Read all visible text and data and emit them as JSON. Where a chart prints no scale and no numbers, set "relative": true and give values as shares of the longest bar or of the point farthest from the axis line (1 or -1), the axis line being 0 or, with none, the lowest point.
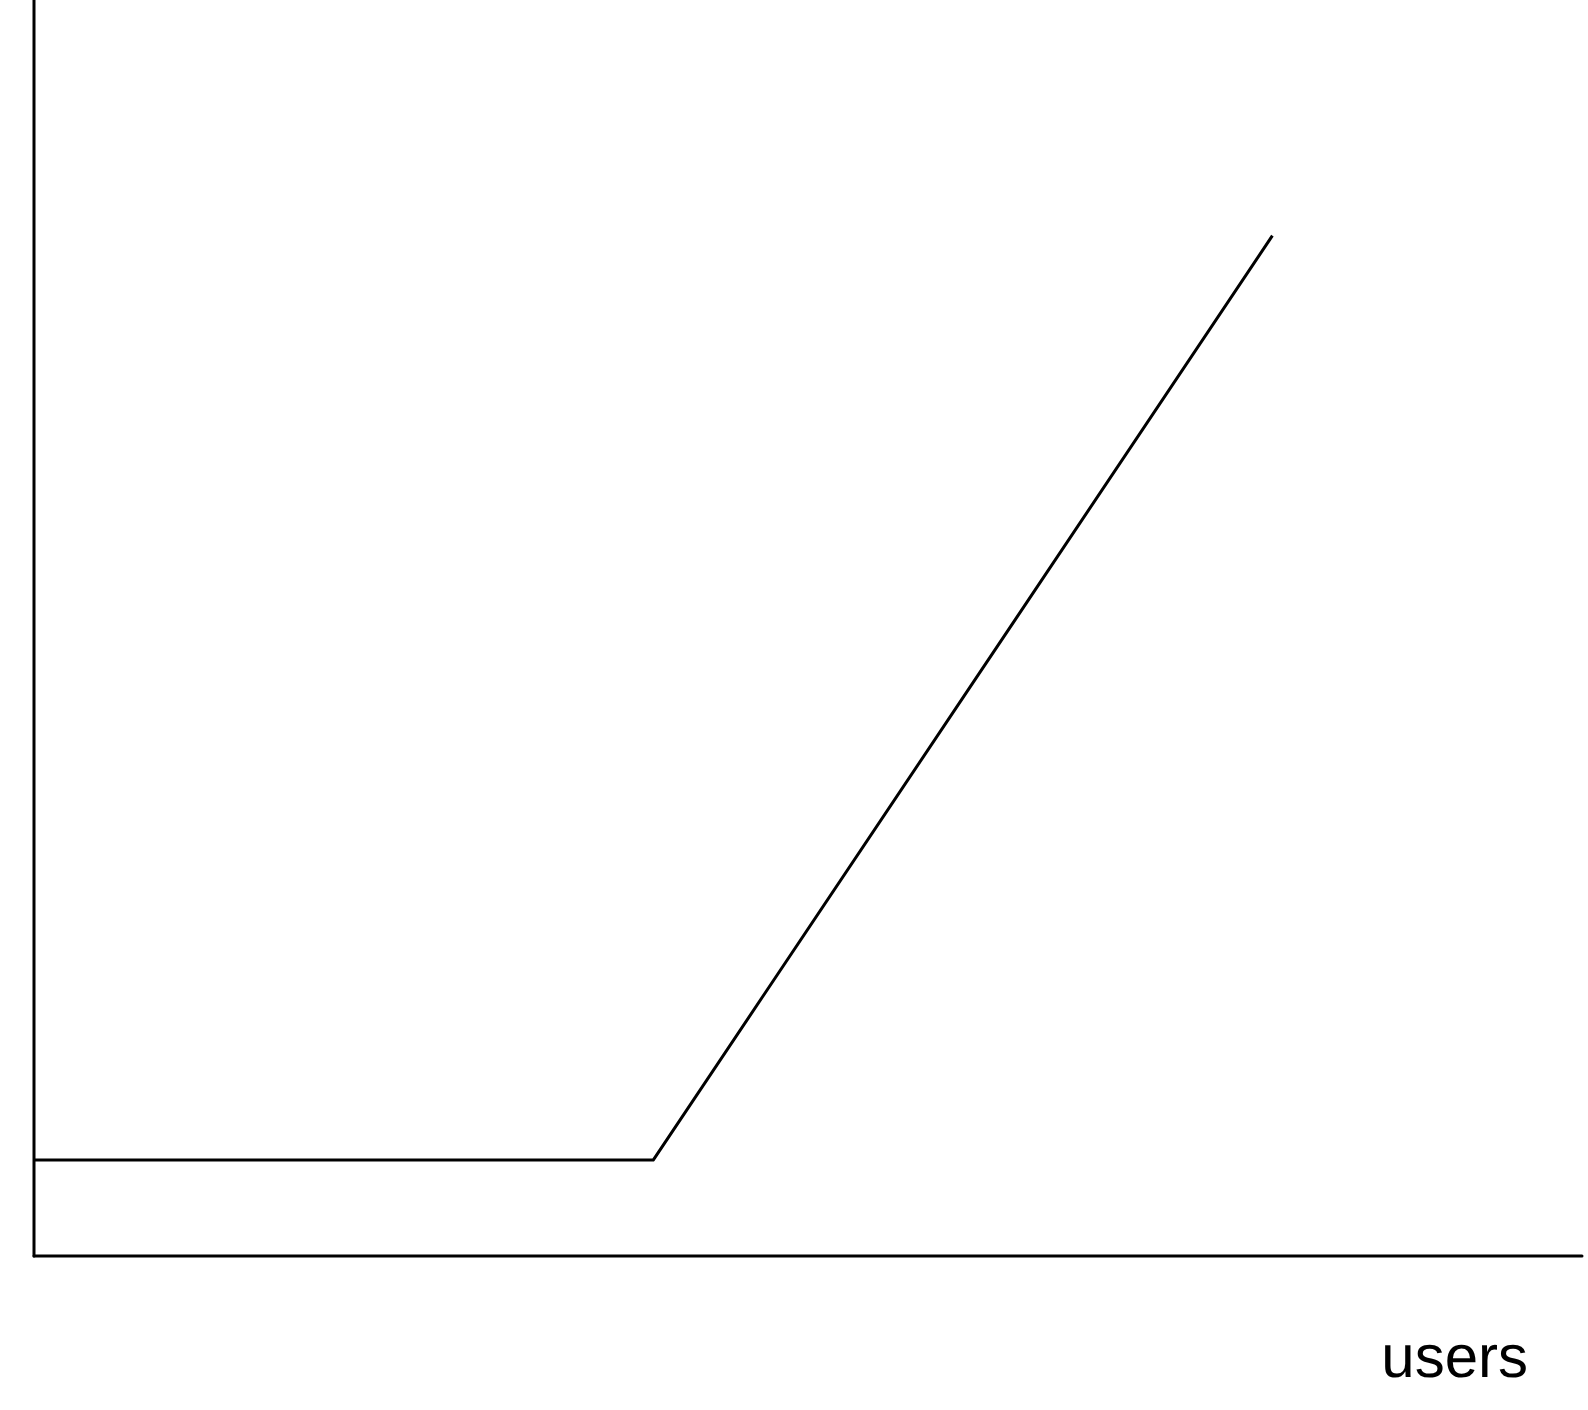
{
  "chart_data": {
    "type": "line",
    "relative": true,
    "xlabel": "users",
    "categories": [
      null,
      null,
      null,
      null,
      null,
      null
    ],
    "series": [
      {
        "color": "#000000",
        "values": [
          0.094,
          0.094,
          0.094,
          0.547,
          1,
          null
        ]
      }
    ],
    "marker": "none",
    "grid": false
  }
}
